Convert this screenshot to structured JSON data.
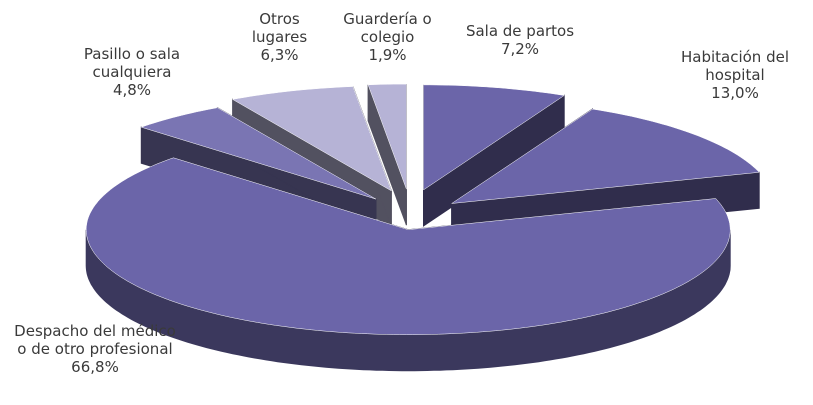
{
  "chart_data": {
    "type": "pie",
    "categories": [
      "Sala de partos",
      "Habitación del hospital",
      "Despacho del médico o de otro profesional",
      "Pasillo o sala cualquiera",
      "Otros lugares",
      "Guardería o colegio"
    ],
    "values": [
      7.2,
      13.0,
      66.8,
      4.8,
      6.3,
      1.9
    ],
    "value_labels": [
      "7,2%",
      "13,0%",
      "66,8%",
      "4,8%",
      "6,3%",
      "1,9%"
    ],
    "colors": [
      "#6b65a9",
      "#6b65a9",
      "#6b65a9",
      "#7a75b3",
      "#b6b3d6",
      "#b6b3d6"
    ]
  }
}
